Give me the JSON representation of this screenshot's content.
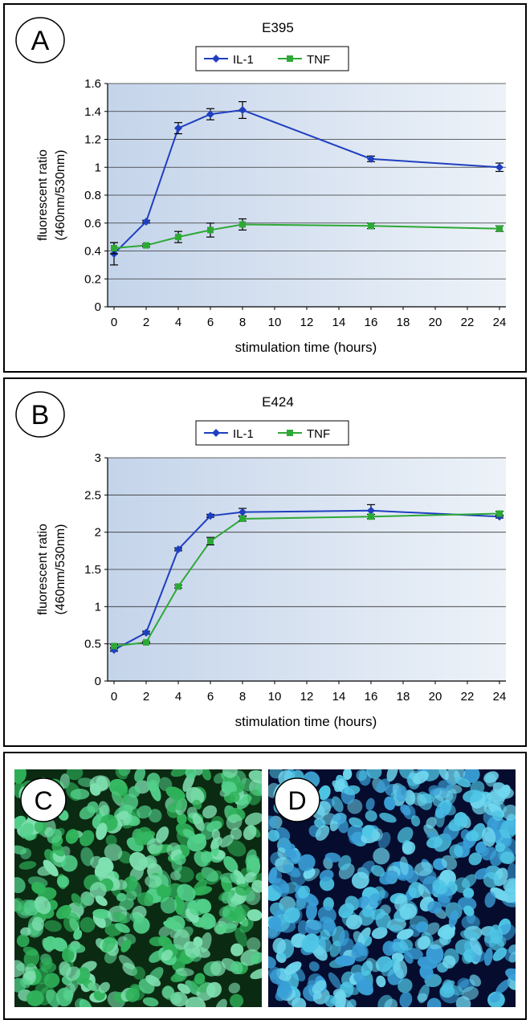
{
  "chart_data": [
    {
      "panel_letter": "A",
      "type": "line",
      "title": "E395",
      "xlabel": "stimulation time (hours)",
      "ylabel_line1": "fluorescent ratio",
      "ylabel_line2": "(460nm/530nm)",
      "x_ticks": [
        "0",
        "2",
        "4",
        "6",
        "8",
        "10",
        "12",
        "14",
        "16",
        "18",
        "20",
        "22",
        "24"
      ],
      "y_ticks": [
        "0",
        "0.2",
        "0.4",
        "0.6",
        "0.8",
        "1",
        "1.2",
        "1.4",
        "1.6"
      ],
      "xlim": [
        0,
        24
      ],
      "ylim": [
        0,
        1.6
      ],
      "grid": true,
      "legend_position": "top",
      "series": [
        {
          "name": "IL-1",
          "color": "#1f3fbf",
          "marker": "diamond",
          "x": [
            0,
            2,
            4,
            6,
            8,
            16,
            24
          ],
          "y": [
            0.38,
            0.61,
            1.28,
            1.38,
            1.41,
            1.06,
            1.0
          ],
          "err": [
            0.08,
            0.01,
            0.04,
            0.04,
            0.06,
            0.02,
            0.03
          ]
        },
        {
          "name": "TNF",
          "color": "#2ea836",
          "marker": "square",
          "x": [
            0,
            2,
            4,
            6,
            8,
            16,
            24
          ],
          "y": [
            0.42,
            0.44,
            0.5,
            0.55,
            0.59,
            0.58,
            0.56
          ],
          "err": [
            0.04,
            0.01,
            0.04,
            0.05,
            0.04,
            0.02,
            0.02
          ]
        }
      ]
    },
    {
      "panel_letter": "B",
      "type": "line",
      "title": "E424",
      "xlabel": "stimulation time (hours)",
      "ylabel_line1": "fluorescent ratio",
      "ylabel_line2": "(460nm/530nm)",
      "x_ticks": [
        "0",
        "2",
        "4",
        "6",
        "8",
        "10",
        "12",
        "14",
        "16",
        "18",
        "20",
        "22",
        "24"
      ],
      "y_ticks": [
        "0",
        "0.5",
        "1",
        "1.5",
        "2",
        "2.5",
        "3"
      ],
      "xlim": [
        0,
        24
      ],
      "ylim": [
        0,
        3
      ],
      "grid": true,
      "legend_position": "top",
      "series": [
        {
          "name": "IL-1",
          "color": "#1f3fbf",
          "marker": "diamond",
          "x": [
            0,
            2,
            4,
            6,
            8,
            16,
            24
          ],
          "y": [
            0.42,
            0.65,
            1.77,
            2.22,
            2.27,
            2.29,
            2.21
          ],
          "err": [
            0.02,
            0.02,
            0.02,
            0.02,
            0.05,
            0.08,
            0.02
          ]
        },
        {
          "name": "TNF",
          "color": "#2ea836",
          "marker": "square",
          "x": [
            0,
            2,
            4,
            6,
            8,
            16,
            24
          ],
          "y": [
            0.47,
            0.52,
            1.27,
            1.88,
            2.18,
            2.21,
            2.25
          ],
          "err": [
            0.02,
            0.01,
            0.02,
            0.05,
            0.03,
            0.03,
            0.03
          ]
        }
      ]
    }
  ],
  "photos": {
    "c_letter": "C",
    "d_letter": "D",
    "c_colors": {
      "background": "#0b2a12",
      "cell_a": "#52d08a",
      "cell_b": "#2fb35a",
      "cell_c": "#7fe0b0"
    },
    "d_colors": {
      "background": "#050c2e",
      "cell_a": "#4fc6e6",
      "cell_b": "#3a9fd8",
      "cell_c": "#6fd6ee"
    }
  }
}
